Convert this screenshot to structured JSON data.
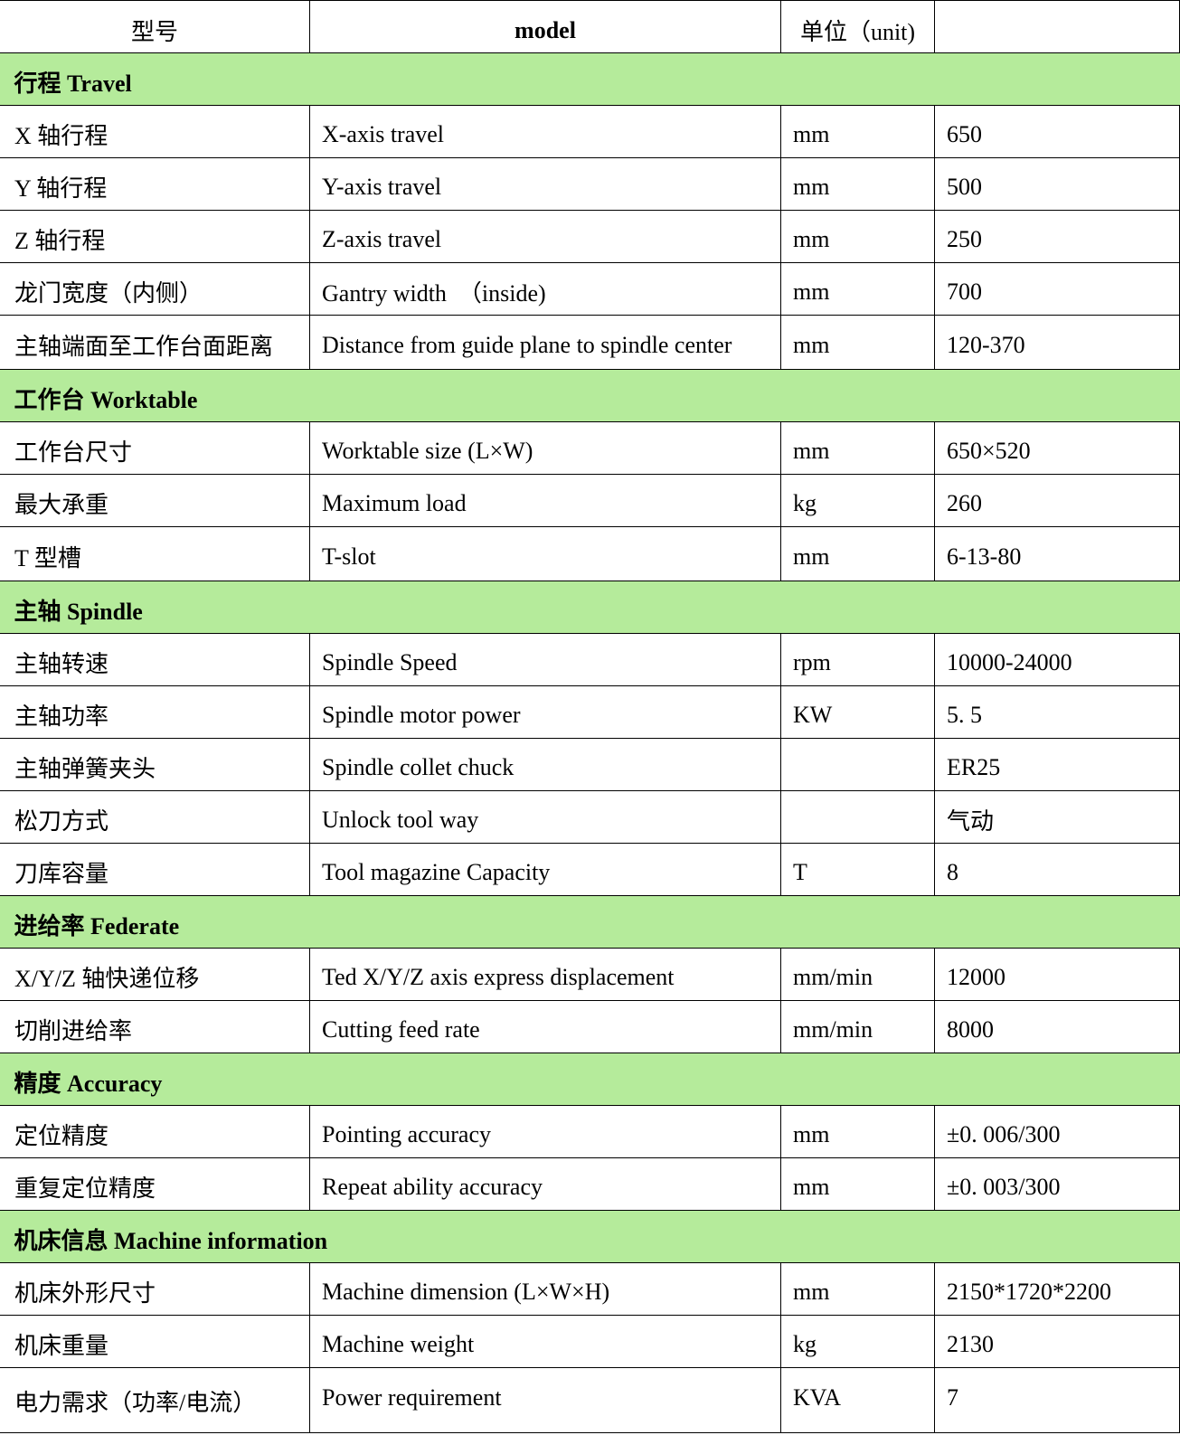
{
  "header": {
    "col1": "型号",
    "col2": "model",
    "col3": "单位（unit)",
    "col4": ""
  },
  "sections": [
    {
      "title": "行程 Travel",
      "rows": [
        [
          "X 轴行程",
          "X-axis travel",
          "mm",
          "650"
        ],
        [
          "Y 轴行程",
          "Y-axis travel",
          "mm",
          "500"
        ],
        [
          "Z 轴行程",
          "Z-axis travel",
          "mm",
          "250"
        ],
        [
          "龙门宽度（内侧）",
          "Gantry width　（inside)",
          "mm",
          "700"
        ],
        [
          "主轴端面至工作台面距离",
          "Distance from guide plane to spindle center",
          "mm",
          "120-370"
        ]
      ]
    },
    {
      "title": "工作台 Worktable",
      "rows": [
        [
          "工作台尺寸",
          "Worktable size (L×W)",
          "mm",
          "650×520"
        ],
        [
          "最大承重",
          "Maximum load",
          " kg",
          "260"
        ],
        [
          "T 型槽",
          "T-slot",
          "mm",
          "6-13-80"
        ]
      ]
    },
    {
      "title": "主轴 Spindle",
      "rows": [
        [
          "主轴转速",
          "Spindle Speed",
          "rpm",
          "10000-24000"
        ],
        [
          "主轴功率",
          "Spindle motor power",
          "KW",
          "5. 5"
        ],
        [
          "主轴弹簧夹头",
          "Spindle collet chuck",
          "",
          "ER25"
        ],
        [
          "松刀方式",
          "Unlock tool way",
          "",
          "气动"
        ],
        [
          "刀库容量",
          "Tool magazine Capacity",
          "T",
          "8"
        ]
      ]
    },
    {
      "title": "进给率 Federate",
      "rows": [
        [
          "X/Y/Z 轴快递位移",
          "Ted X/Y/Z axis express displacement",
          "mm/min",
          "12000"
        ],
        [
          "切削进给率",
          "Cutting feed rate",
          "mm/min",
          "8000"
        ]
      ]
    },
    {
      "title": "精度 Accuracy",
      "rows": [
        [
          "定位精度",
          "Pointing accuracy",
          "mm",
          "±0. 006/300"
        ],
        [
          "重复定位精度",
          "Repeat ability accuracy",
          "mm",
          "±0. 003/300"
        ]
      ]
    },
    {
      "title": "机床信息 Machine information",
      "rows": [
        [
          "机床外形尺寸",
          "Machine dimension (L×W×H)",
          "mm",
          "2150*1720*2200"
        ],
        [
          "机床重量",
          "Machine weight",
          "kg",
          "2130"
        ],
        [
          "电力需求（功率/电流）",
          "Power requirement",
          "KVA",
          "7"
        ]
      ]
    }
  ],
  "colors": {
    "section_bg": "#b5eb9b",
    "border": "#000000"
  }
}
